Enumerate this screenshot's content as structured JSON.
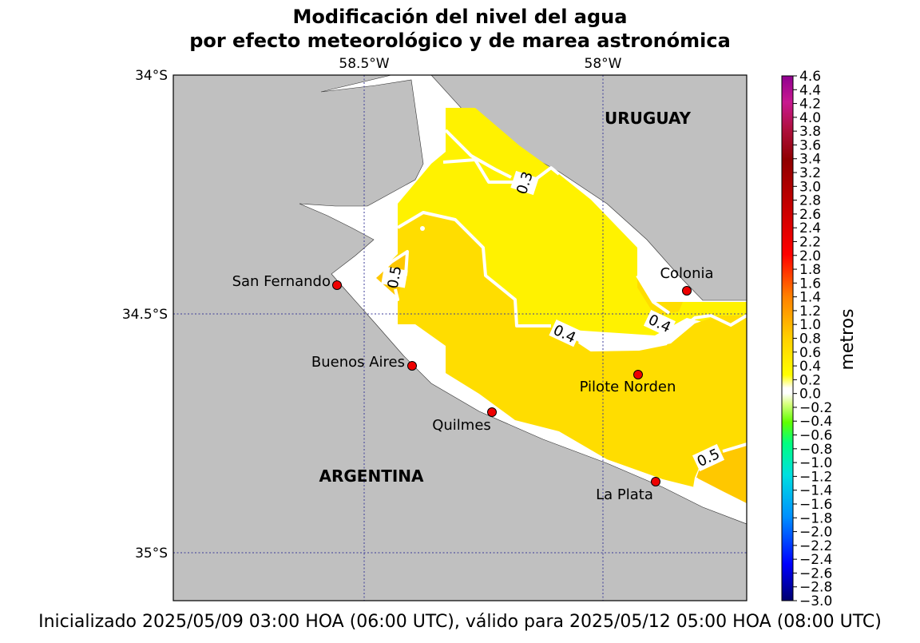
{
  "title": {
    "line1": "Modificación del nivel del agua",
    "line2": "por efecto meteorológico y de marea astronómica"
  },
  "footer": "Inicializado 2025/05/09 03:00 HOA (06:00 UTC), válido para 2025/05/12 05:00 HOA (08:00 UTC)",
  "map": {
    "lon_labels": [
      "58.5°W",
      "58°W"
    ],
    "lat_labels": [
      "34°S",
      "34.5°S",
      "35°S"
    ],
    "countries": {
      "uruguay": "URUGUAY",
      "argentina": "ARGENTINA"
    },
    "stations": [
      {
        "name": "San Fernando"
      },
      {
        "name": "Buenos Aires"
      },
      {
        "name": "Quilmes"
      },
      {
        "name": "Colonia"
      },
      {
        "name": "Pilote Norden"
      },
      {
        "name": "La Plata"
      }
    ],
    "contour_labels": [
      "0.3",
      "0.5",
      "0.4",
      "0.4",
      "0.5"
    ],
    "colors": {
      "land": "#c0c0c0",
      "level_03_04": "#fff200",
      "level_04_05": "#ffdd00",
      "level_05_06": "#ffc800",
      "station": "#ee0000"
    }
  },
  "colorbar": {
    "label": "metros",
    "min": -3.0,
    "max": 4.6,
    "ticks": [
      "4.6",
      "4.4",
      "4.2",
      "4.0",
      "3.8",
      "3.6",
      "3.4",
      "3.2",
      "3.0",
      "2.8",
      "2.6",
      "2.4",
      "2.2",
      "2.0",
      "1.8",
      "1.6",
      "1.4",
      "1.2",
      "1.0",
      "0.8",
      "0.6",
      "0.4",
      "0.2",
      "0.0",
      "−0.2",
      "−0.4",
      "−0.6",
      "−0.8",
      "−1.0",
      "−1.2",
      "−1.4",
      "−1.6",
      "−1.8",
      "−2.0",
      "−2.2",
      "−2.4",
      "−2.6",
      "−2.8",
      "−3.0"
    ]
  }
}
